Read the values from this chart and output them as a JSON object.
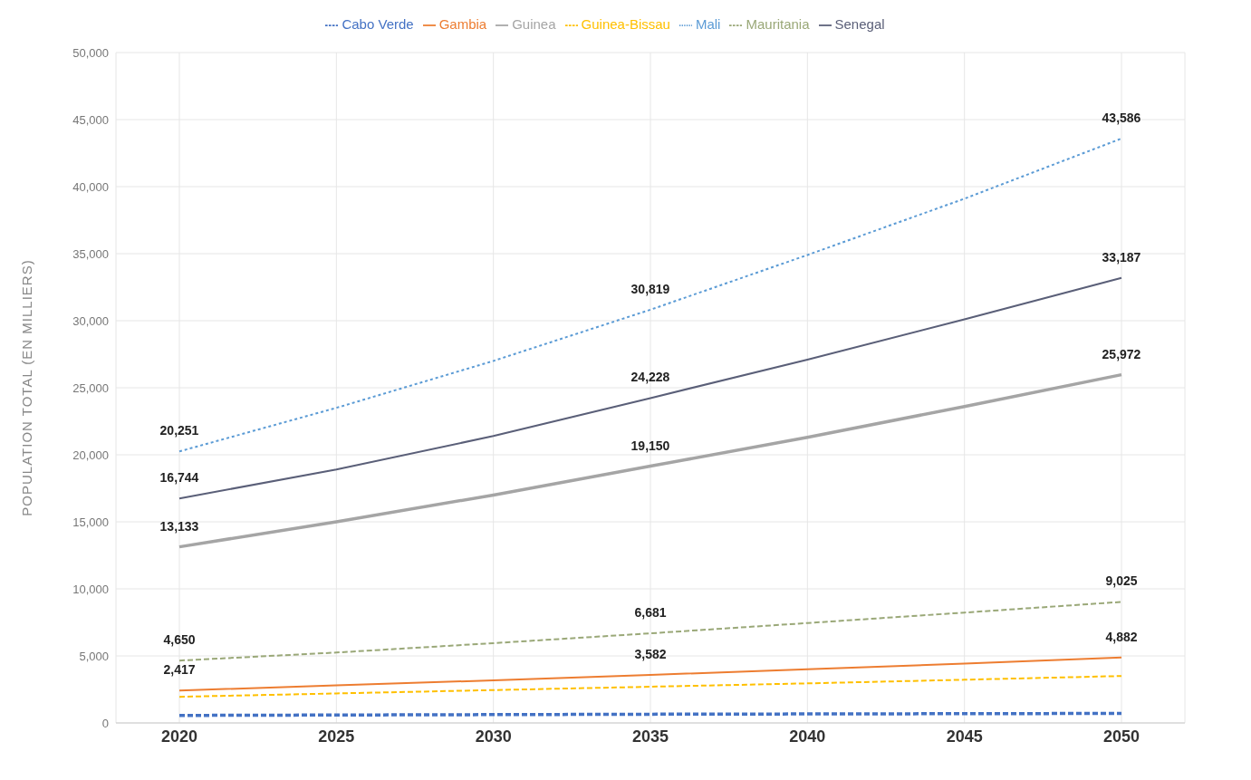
{
  "chart_data": {
    "type": "line",
    "ylabel": "POPULATION TOTAL (EN MILLIERS)",
    "categories": [
      "2020",
      "2025",
      "2030",
      "2035",
      "2040",
      "2045",
      "2050"
    ],
    "ylim": [
      0,
      50000
    ],
    "yticks": [
      0,
      {
        "value": 5000,
        "label": "5,000"
      },
      {
        "value": 10000,
        "label": "10,000"
      },
      {
        "value": 15000,
        "label": "15,000"
      },
      {
        "value": 20000,
        "label": "20,000"
      },
      {
        "value": 25000,
        "label": "25,000"
      },
      {
        "value": 30000,
        "label": "30,000"
      },
      {
        "value": 35000,
        "label": "35,000"
      },
      {
        "value": 40000,
        "label": "40,000"
      },
      {
        "value": 45000,
        "label": "45,000"
      },
      {
        "value": 50000,
        "label": "50,000"
      }
    ],
    "grid": true,
    "legend": "top",
    "marker": "none",
    "series": [
      {
        "name": "Cabo Verde",
        "color": "#4472c4",
        "line_style": "dashed",
        "values": [
          560,
          590,
          620,
          650,
          670,
          690,
          710
        ]
      },
      {
        "name": "Gambia",
        "color": "#ed7d31",
        "line_style": "solid",
        "values": [
          2417,
          2800,
          3180,
          3582,
          4000,
          4430,
          4882
        ],
        "value_labels": [
          "2,417",
          null,
          null,
          "3,582",
          null,
          null,
          "4,882"
        ]
      },
      {
        "name": "Guinea",
        "color": "#a5a5a5",
        "line_style": "solid",
        "values": [
          13133,
          15000,
          17000,
          19150,
          21300,
          23600,
          25972
        ],
        "value_labels": [
          "13,133",
          null,
          null,
          "19,150",
          null,
          null,
          "25,972"
        ]
      },
      {
        "name": "Guinea-Bissau",
        "color": "#ffc000",
        "line_style": "dashed",
        "values": [
          1950,
          2200,
          2450,
          2700,
          2950,
          3220,
          3500
        ]
      },
      {
        "name": "Mali",
        "color": "#5b9bd5",
        "line_style": "dotted",
        "values": [
          20251,
          23500,
          27000,
          30819,
          34900,
          39100,
          43586
        ],
        "value_labels": [
          "20,251",
          null,
          null,
          "30,819",
          null,
          null,
          "43,586"
        ]
      },
      {
        "name": "Mauritania",
        "color": "#9aa878",
        "line_style": "dashed",
        "values": [
          4650,
          5250,
          5950,
          6681,
          7450,
          8230,
          9025
        ],
        "value_labels": [
          "4,650",
          null,
          null,
          "6,681",
          null,
          null,
          "9,025"
        ]
      },
      {
        "name": "Senegal",
        "color": "#5a5f78",
        "line_style": "solid",
        "values": [
          16744,
          18900,
          21400,
          24228,
          27100,
          30100,
          33187
        ],
        "value_labels": [
          "16,744",
          null,
          null,
          "24,228",
          null,
          null,
          "33,187"
        ]
      }
    ]
  }
}
